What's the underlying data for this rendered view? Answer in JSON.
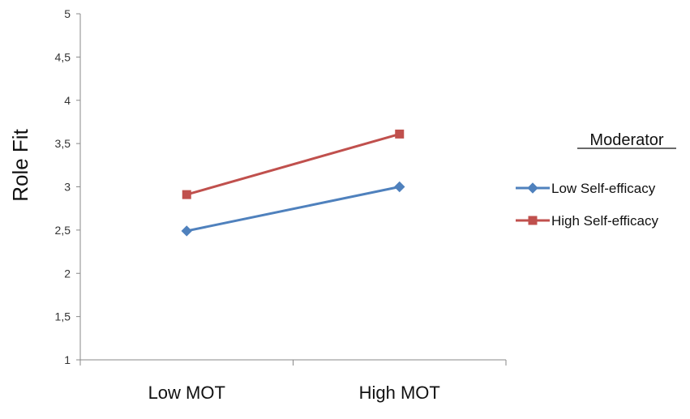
{
  "chart_data": {
    "type": "line",
    "title": "",
    "xlabel": "",
    "ylabel": "Role Fit",
    "categories": [
      "Low MOT",
      "High MOT"
    ],
    "y_ticks": [
      "1",
      "1,5",
      "2",
      "2,5",
      "3",
      "3,5",
      "4",
      "4,5",
      "5"
    ],
    "ylim": [
      1,
      5
    ],
    "grid": false,
    "legend": {
      "title": "Moderator",
      "placement": "right"
    },
    "series": [
      {
        "name": "Low Self-efficacy",
        "values": [
          2.49,
          3.0
        ],
        "color": "#4F81BD",
        "marker": "diamond"
      },
      {
        "name": "High Self-efficacy",
        "values": [
          2.91,
          3.61
        ],
        "color": "#C0504D",
        "marker": "square"
      }
    ]
  }
}
